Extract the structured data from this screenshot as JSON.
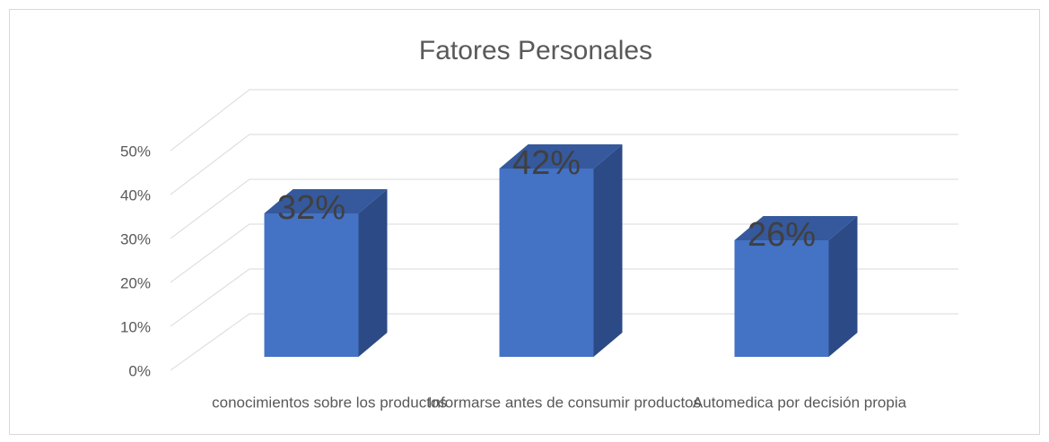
{
  "chart_data": {
    "type": "bar3d",
    "title": "Fatores Personales",
    "categories": [
      "conocimientos sobre los productos",
      "Informarse antes de consumir productos",
      "Automedica por decisión propia"
    ],
    "values": [
      32,
      42,
      26
    ],
    "value_labels": [
      "32%",
      "42%",
      "26%"
    ],
    "color": "#4472c4",
    "ylim": [
      0,
      50
    ],
    "yticks": [
      {
        "value": 0,
        "label": "0%"
      },
      {
        "value": 10,
        "label": "10%"
      },
      {
        "value": 20,
        "label": "20%"
      },
      {
        "value": 30,
        "label": "30%"
      },
      {
        "value": 40,
        "label": "40%"
      },
      {
        "value": 50,
        "label": "50%"
      }
    ],
    "grid": true
  }
}
